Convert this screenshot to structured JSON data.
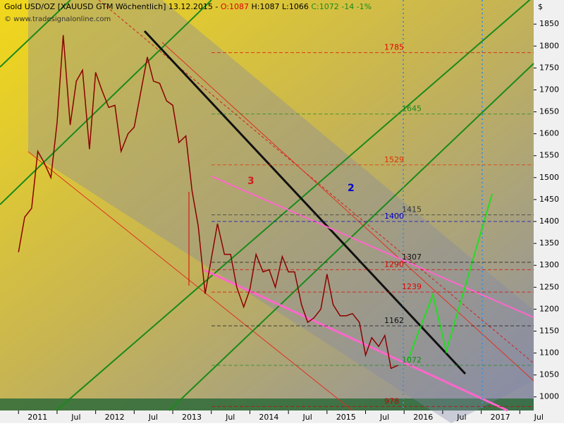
{
  "header": {
    "title": "Gold USD/OZ [XAUUSD GTM  Wöchentlich] 13.12.2015 -",
    "open": "O:1087",
    "high": "H:1087",
    "low": "L:1066",
    "close": "C:1072 -14 -1%",
    "watermark": "© www.tradesignalonline.com",
    "currency": "$"
  },
  "chart_data": {
    "type": "line",
    "x": [
      2011.0,
      2011.08,
      2011.17,
      2011.25,
      2011.33,
      2011.42,
      2011.5,
      2011.58,
      2011.67,
      2011.75,
      2011.83,
      2011.92,
      2012.0,
      2012.08,
      2012.17,
      2012.25,
      2012.33,
      2012.42,
      2012.5,
      2012.58,
      2012.67,
      2012.75,
      2012.83,
      2012.92,
      2013.0,
      2013.08,
      2013.17,
      2013.25,
      2013.33,
      2013.42,
      2013.5,
      2013.58,
      2013.67,
      2013.75,
      2013.83,
      2013.92,
      2014.0,
      2014.08,
      2014.17,
      2014.25,
      2014.33,
      2014.42,
      2014.5,
      2014.58,
      2014.67,
      2014.75,
      2014.83,
      2014.92,
      2015.0,
      2015.08,
      2015.17,
      2015.25,
      2015.33,
      2015.42,
      2015.5,
      2015.58,
      2015.67,
      2015.75,
      2015.83,
      2015.92
    ],
    "series": [
      {
        "name": "Gold USD/OZ",
        "color": "#8b0000",
        "values": [
          1330,
          1410,
          1430,
          1560,
          1535,
          1500,
          1625,
          1825,
          1620,
          1720,
          1745,
          1565,
          1740,
          1700,
          1660,
          1665,
          1560,
          1600,
          1615,
          1690,
          1775,
          1720,
          1715,
          1675,
          1665,
          1580,
          1595,
          1470,
          1390,
          1235,
          1315,
          1395,
          1325,
          1325,
          1250,
          1205,
          1245,
          1325,
          1285,
          1290,
          1250,
          1320,
          1285,
          1285,
          1210,
          1170,
          1180,
          1200,
          1280,
          1210,
          1185,
          1185,
          1190,
          1170,
          1095,
          1135,
          1115,
          1140,
          1065,
          1072
        ]
      }
    ],
    "xlim": [
      2010.76,
      2017.68
    ],
    "xticks": [
      {
        "value": 2011,
        "label": "2011"
      },
      {
        "value": 2011.5,
        "label": "Jul"
      },
      {
        "value": 2012,
        "label": "2012"
      },
      {
        "value": 2012.5,
        "label": "Jul"
      },
      {
        "value": 2013,
        "label": "2013"
      },
      {
        "value": 2013.5,
        "label": "Jul"
      },
      {
        "value": 2014,
        "label": "2014"
      },
      {
        "value": 2014.5,
        "label": "Jul"
      },
      {
        "value": 2015,
        "label": "2015"
      },
      {
        "value": 2015.5,
        "label": "Jul"
      },
      {
        "value": 2016,
        "label": "2016"
      },
      {
        "value": 2016.5,
        "label": "Jul"
      },
      {
        "value": 2017,
        "label": "2017"
      },
      {
        "value": 2017.5,
        "label": "Jul"
      }
    ],
    "ylim": [
      969,
      1905
    ],
    "yticks": [
      1000,
      1050,
      1100,
      1150,
      1200,
      1250,
      1300,
      1350,
      1400,
      1450,
      1500,
      1550,
      1600,
      1650,
      1700,
      1750,
      1800,
      1850
    ],
    "levels": [
      {
        "value": 1785,
        "color": "#e00000"
      },
      {
        "value": 1645,
        "color": "#1a8a1a"
      },
      {
        "value": 1529,
        "color": "#e03000"
      },
      {
        "value": 1415,
        "color": "#333333"
      },
      {
        "value": 1400,
        "color": "#0000cc"
      },
      {
        "value": 1307,
        "color": "#111111"
      },
      {
        "value": 1290,
        "color": "#e00000"
      },
      {
        "value": 1239,
        "color": "#e00000"
      },
      {
        "value": 1162,
        "color": "#111111"
      },
      {
        "value": 1072,
        "color": "#1a8a1a"
      },
      {
        "value": 978,
        "color": "#cc0000"
      }
    ],
    "wave_labels": [
      "2",
      "3"
    ]
  }
}
